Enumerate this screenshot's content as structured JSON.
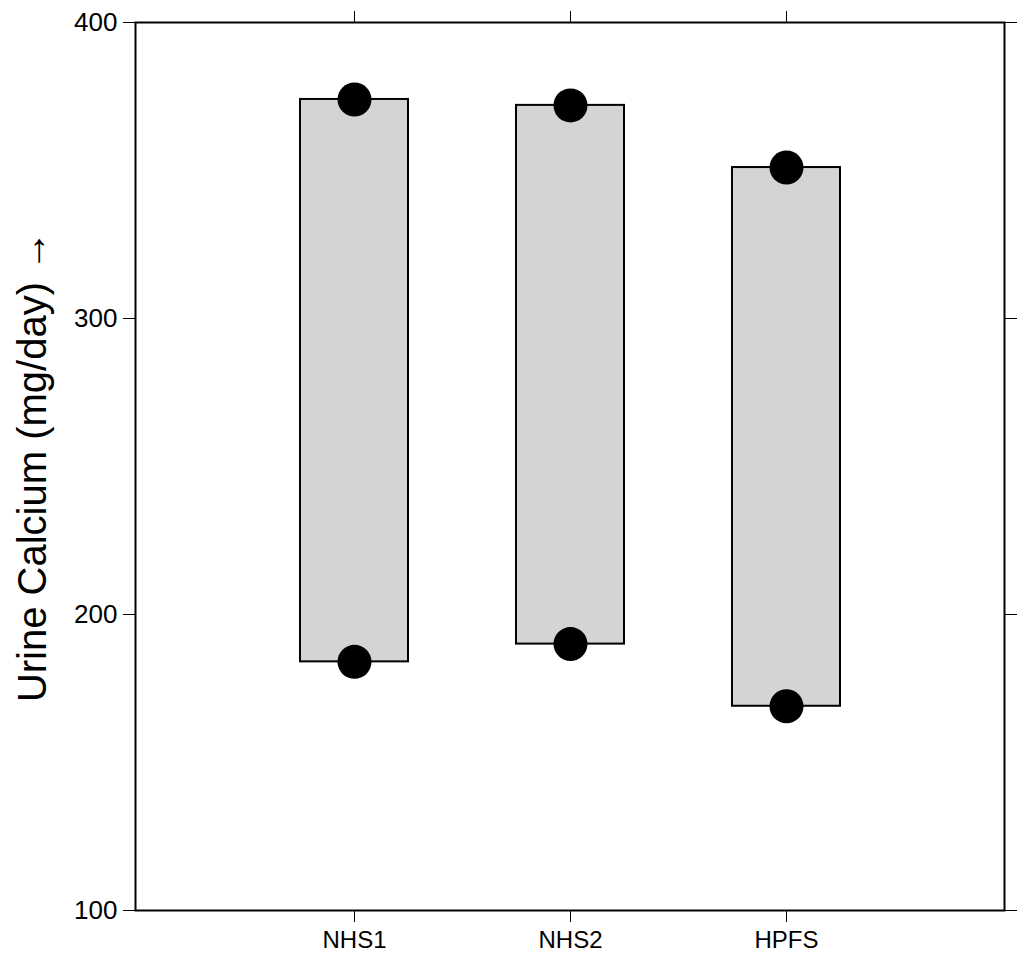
{
  "chart_data": {
    "type": "range_bar",
    "categories": [
      "NHS1",
      "NHS2",
      "HPFS"
    ],
    "values": [
      [
        184,
        374
      ],
      [
        190,
        372
      ],
      [
        169,
        351
      ]
    ],
    "y_label": "Urine Calcium (mg/day)",
    "ylim": [
      100,
      400
    ],
    "yticks": [
      100,
      200,
      300,
      400
    ],
    "color": "#d4d4d4",
    "marker": "circle",
    "grid": false
  }
}
